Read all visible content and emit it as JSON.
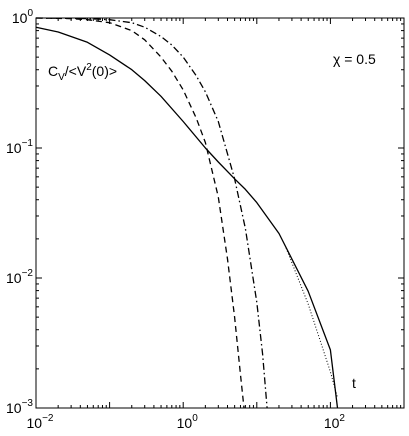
{
  "chart_data": {
    "type": "line",
    "title": "",
    "xlabel": "",
    "ylabel": "",
    "xscale": "log",
    "yscale": "log",
    "xlim": [
      0.01,
      1000
    ],
    "ylim": [
      0.001,
      1
    ],
    "grid": false,
    "legend": "none",
    "x_ticks": [
      {
        "value": 0.01,
        "base": "10",
        "exp": "−2"
      },
      {
        "value": 1,
        "base": "10",
        "exp": "0"
      },
      {
        "value": 100,
        "base": "10",
        "exp": "2"
      }
    ],
    "y_ticks": [
      {
        "value": 0.001,
        "base": "10",
        "exp": "−3"
      },
      {
        "value": 0.01,
        "base": "10",
        "exp": "−2"
      },
      {
        "value": 0.1,
        "base": "10",
        "exp": "−1"
      },
      {
        "value": 1,
        "base": "10",
        "exp": "0"
      }
    ],
    "annotations": {
      "ylabel_main": "C",
      "ylabel_sub": "V",
      "ylabel_rest": "/<V",
      "ylabel_sup": "2",
      "ylabel_end": "(0)>",
      "chi": "χ = 0.5",
      "t": "t"
    },
    "series": [
      {
        "style": "solid",
        "color": "#000000",
        "x": [
          0.01,
          0.02,
          0.05,
          0.1,
          0.2,
          0.3,
          0.5,
          1,
          2,
          3,
          5,
          7,
          10,
          20,
          50,
          100,
          125
        ],
        "y": [
          0.85,
          0.78,
          0.65,
          0.52,
          0.4,
          0.33,
          0.25,
          0.16,
          0.1,
          0.078,
          0.058,
          0.048,
          0.038,
          0.022,
          0.0079,
          0.0028,
          0.001
        ]
      },
      {
        "style": "dashed",
        "color": "#000000",
        "x": [
          0.01,
          0.03,
          0.05,
          0.1,
          0.2,
          0.3,
          0.5,
          0.7,
          1,
          1.5,
          2,
          3,
          4,
          5,
          6,
          6.7
        ],
        "y": [
          1.0,
          0.99,
          0.97,
          0.92,
          0.8,
          0.68,
          0.5,
          0.39,
          0.28,
          0.17,
          0.11,
          0.042,
          0.014,
          0.005,
          0.0018,
          0.001
        ]
      },
      {
        "style": "dashdot",
        "color": "#000000",
        "x": [
          0.01,
          0.05,
          0.1,
          0.2,
          0.3,
          0.5,
          0.7,
          1,
          1.5,
          2,
          3,
          5,
          7,
          10,
          12,
          13.8
        ],
        "y": [
          1.0,
          0.99,
          0.97,
          0.92,
          0.85,
          0.72,
          0.62,
          0.5,
          0.36,
          0.27,
          0.16,
          0.058,
          0.024,
          0.0065,
          0.0026,
          0.001
        ]
      },
      {
        "style": "dotted",
        "color": "#000000",
        "x": [
          25,
          50,
          100,
          125
        ],
        "y": [
          0.017,
          0.0063,
          0.0019,
          0.0012
        ]
      }
    ]
  }
}
